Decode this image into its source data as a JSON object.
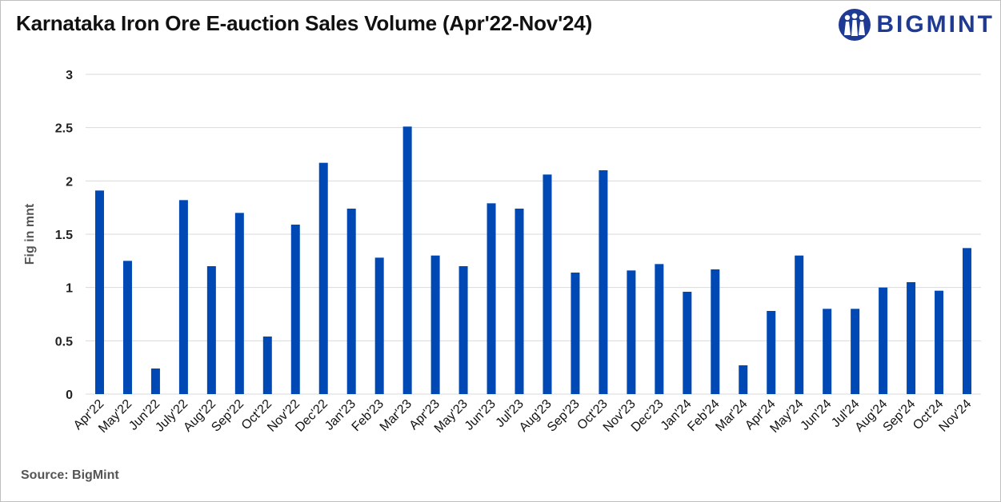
{
  "title": "Karnataka Iron Ore E-auction Sales Volume (Apr'22-Nov'24)",
  "logo": {
    "text": "BIGMINT",
    "icon": "bigmint-people-icon",
    "color": "#1f3a93"
  },
  "source": "Source: BigMint",
  "colors": {
    "bar": "#0049b4",
    "grid": "#d9d9d9"
  },
  "chart_data": {
    "type": "bar",
    "ylabel": "Fig in mnt",
    "ylim": [
      0,
      3
    ],
    "yticks": [
      0,
      0.5,
      1,
      1.5,
      2,
      2.5,
      3
    ],
    "ytick_labels": [
      "0",
      "0.5",
      "1",
      "1.5",
      "2",
      "2.5",
      "3"
    ],
    "grid": true,
    "categories": [
      "Apr'22",
      "May'22",
      "Jun'22",
      "July'22",
      "Aug'22",
      "Sep'22",
      "Oct'22",
      "Nov'22",
      "Dec'22",
      "Jan'23",
      "Feb'23",
      "Mar'23",
      "Apr'23",
      "May'23",
      "Jun'23",
      "Jul'23",
      "Aug'23",
      "Sep'23",
      "Oct'23",
      "Nov'23",
      "Dec'23",
      "Jan'24",
      "Feb'24",
      "Mar'24",
      "Apr'24",
      "May'24",
      "Jun'24",
      "Jul'24",
      "Aug'24",
      "Sep'24",
      "Oct'24",
      "Nov'24"
    ],
    "values": [
      1.91,
      1.25,
      0.24,
      1.82,
      1.2,
      1.7,
      0.54,
      1.59,
      2.17,
      1.74,
      1.28,
      2.51,
      1.3,
      1.2,
      1.79,
      1.74,
      2.06,
      1.14,
      2.1,
      1.16,
      1.22,
      0.96,
      1.17,
      0.27,
      0.78,
      1.3,
      0.8,
      0.8,
      1.0,
      1.05,
      0.97,
      1.37
    ]
  }
}
